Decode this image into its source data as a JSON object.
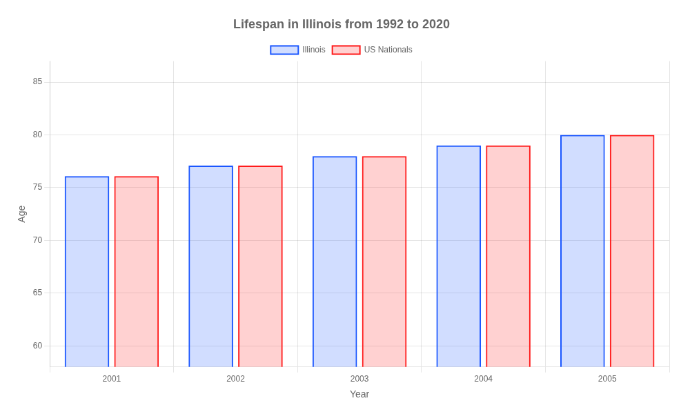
{
  "chart_data": {
    "type": "bar",
    "title": "Lifespan in Illinois from 1992 to 2020",
    "xlabel": "Year",
    "ylabel": "Age",
    "categories": [
      "2001",
      "2002",
      "2003",
      "2004",
      "2005"
    ],
    "series": [
      {
        "name": "Illinois",
        "color": "#1a56ff",
        "values": [
          76.1,
          77.1,
          78.0,
          79.0,
          80.0
        ]
      },
      {
        "name": "US Nationals",
        "color": "#ff1a1a",
        "values": [
          76.1,
          77.1,
          78.0,
          79.0,
          80.0
        ]
      }
    ],
    "ylim": [
      58,
      87
    ],
    "yticks": [
      60,
      65,
      70,
      75,
      80,
      85
    ],
    "grid": true,
    "legend": "top"
  }
}
